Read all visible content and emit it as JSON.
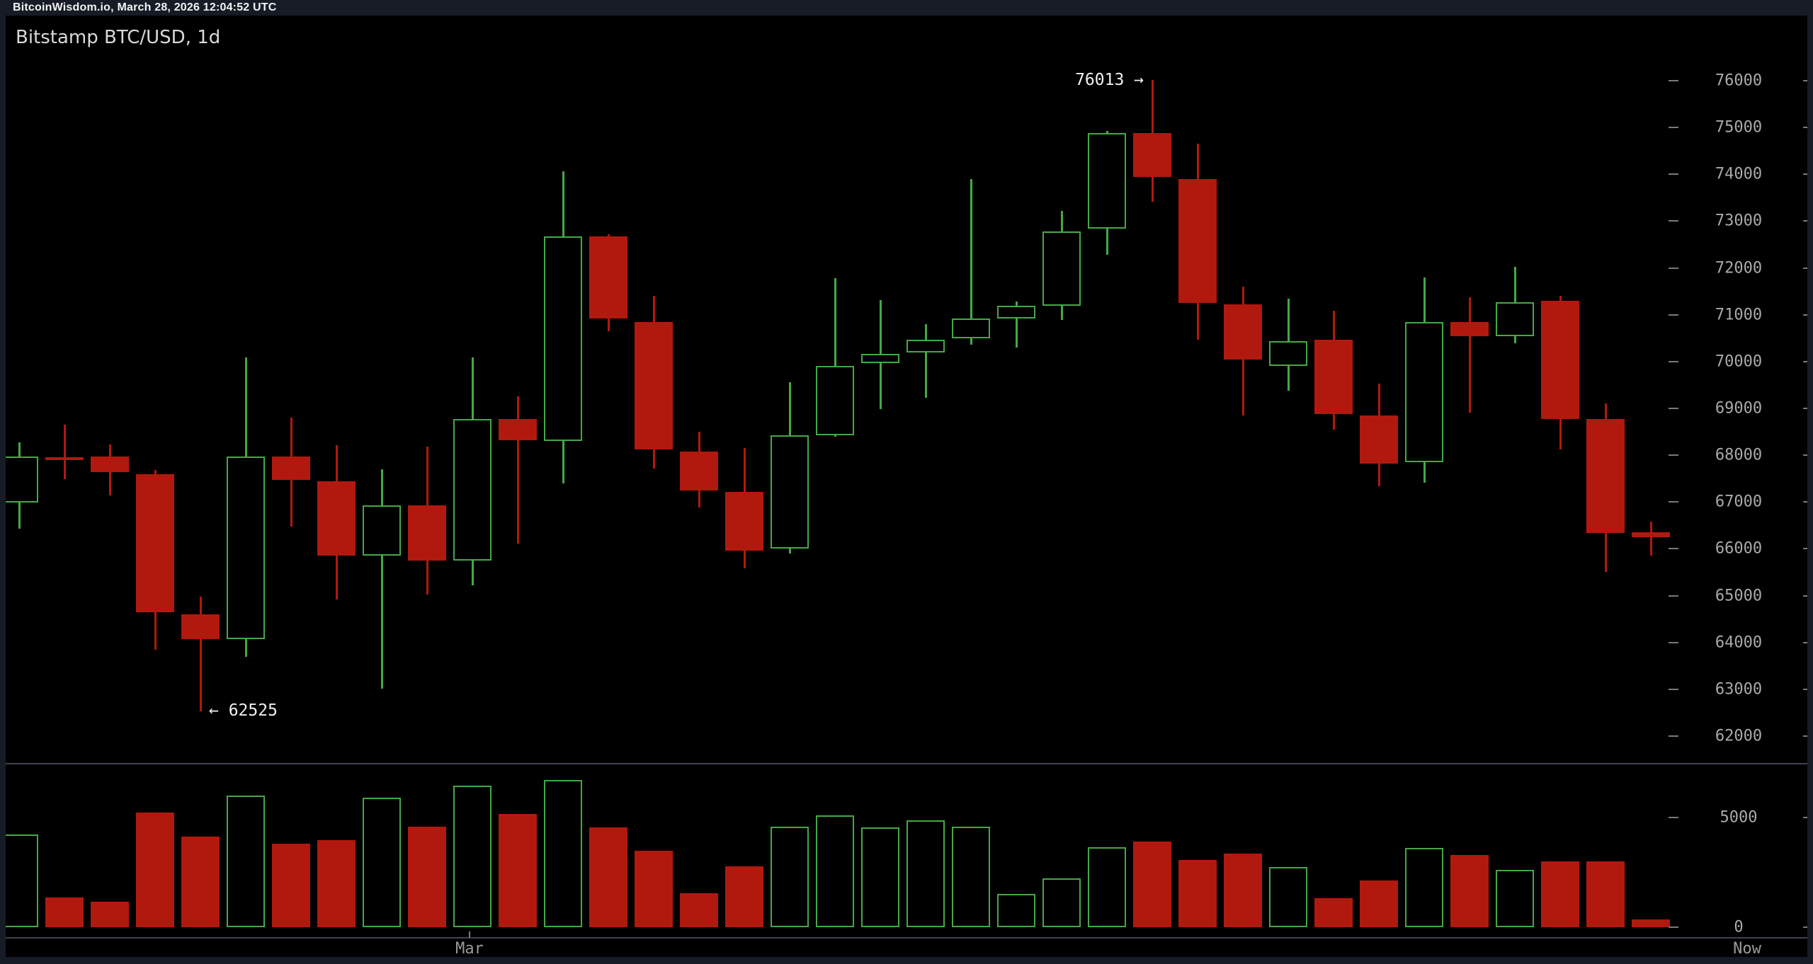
{
  "top_bar": {
    "timestamp": "BitcoinWisdom.io, March 28, 2026 12:04:52 UTC"
  },
  "chart": {
    "title": "Bitstamp BTC/USD, 1d"
  },
  "annotations": {
    "high": "76013 →",
    "low": "← 62525"
  },
  "x_axis": {
    "labels": [
      "Mar",
      "Now"
    ]
  },
  "colors": {
    "background": "#161b26",
    "panel": "#000000",
    "up": "#45a845",
    "down": "#b2190e",
    "axis_text": "#aaaaaa",
    "annotation_text": "#f0f0f0",
    "divider": "#3f434d"
  },
  "chart_data": {
    "type": "candlestick",
    "title": "Bitstamp BTC/USD, 1d",
    "legend_position": "none",
    "grid": false,
    "price_axis_ticks": [
      76000,
      75000,
      74000,
      73000,
      72000,
      71000,
      70000,
      69000,
      68000,
      67000,
      66000,
      65000,
      64000,
      63000,
      62000
    ],
    "volume_axis_ticks": [
      5000,
      0
    ],
    "x_tick_labels": [
      "Mar",
      "Now"
    ],
    "mar_tick_candle_index": 10,
    "high_annotation": {
      "text": "76013 →",
      "price": 76013,
      "candle_index": 25
    },
    "low_annotation": {
      "text": "← 62525",
      "price": 62525,
      "candle_index": 4
    },
    "candles_format": [
      "open",
      "high",
      "low",
      "close",
      "volume"
    ],
    "candles": [
      [
        66990,
        68270,
        66430,
        67970,
        4220
      ],
      [
        67960,
        68650,
        67490,
        67890,
        1350
      ],
      [
        67970,
        68230,
        67140,
        67640,
        1150
      ],
      [
        67590,
        67680,
        63840,
        64650,
        5230
      ],
      [
        64600,
        64980,
        62525,
        64070,
        4140
      ],
      [
        64070,
        70090,
        63690,
        67970,
        5990
      ],
      [
        67970,
        68810,
        66470,
        67480,
        3810
      ],
      [
        67440,
        68210,
        64920,
        65850,
        3980
      ],
      [
        65850,
        67700,
        63010,
        66930,
        5910
      ],
      [
        66930,
        68180,
        65020,
        65750,
        4580
      ],
      [
        65750,
        70090,
        65220,
        68770,
        6440
      ],
      [
        68770,
        69260,
        66110,
        68320,
        5150
      ],
      [
        68300,
        74060,
        67400,
        72670,
        6720
      ],
      [
        72670,
        72720,
        70650,
        70920,
        4540
      ],
      [
        70840,
        71400,
        67710,
        68120,
        3490
      ],
      [
        68080,
        68500,
        66880,
        67250,
        1560
      ],
      [
        67220,
        68150,
        65580,
        65960,
        2770
      ],
      [
        66010,
        69560,
        65900,
        68430,
        4580
      ],
      [
        68430,
        71780,
        68400,
        69910,
        5100
      ],
      [
        69970,
        71310,
        68980,
        70160,
        4540
      ],
      [
        70190,
        70800,
        69230,
        70470,
        4860
      ],
      [
        70500,
        73900,
        70360,
        70920,
        4580
      ],
      [
        70920,
        71280,
        70300,
        71190,
        1520
      ],
      [
        71190,
        73220,
        70890,
        72780,
        2240
      ],
      [
        72840,
        74930,
        72280,
        74880,
        3650
      ],
      [
        74880,
        76013,
        73420,
        73940,
        3900
      ],
      [
        73900,
        74660,
        70470,
        71250,
        3050
      ],
      [
        71220,
        71600,
        68850,
        70040,
        3370
      ],
      [
        69910,
        71340,
        69380,
        70440,
        2730
      ],
      [
        70470,
        71090,
        68550,
        68880,
        1310
      ],
      [
        68850,
        69530,
        67340,
        67820,
        2120
      ],
      [
        67850,
        71800,
        67410,
        70840,
        3610
      ],
      [
        70840,
        71370,
        68910,
        70540,
        3290
      ],
      [
        70540,
        72020,
        70390,
        71270,
        2600
      ],
      [
        71300,
        71400,
        68120,
        68770,
        3010
      ],
      [
        68770,
        69110,
        65510,
        66340,
        3010
      ],
      [
        66350,
        66580,
        65850,
        66250,
        350
      ]
    ],
    "price_range_visible": [
      61400,
      77400
    ],
    "volume_range_visible": [
      0,
      7400
    ]
  }
}
